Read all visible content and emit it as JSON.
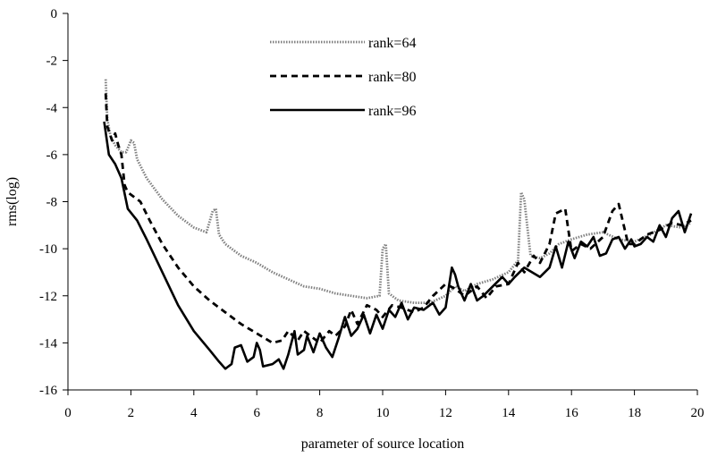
{
  "chart_data": {
    "type": "line",
    "title": "",
    "xlabel": "parameter of source location",
    "ylabel": "rms(log)",
    "xlim": [
      0,
      20
    ],
    "ylim": [
      -16,
      0
    ],
    "x_ticks": [
      0,
      2,
      4,
      6,
      8,
      10,
      12,
      14,
      16,
      18,
      20
    ],
    "y_ticks": [
      0,
      -2,
      -4,
      -6,
      -8,
      -10,
      -12,
      -14,
      -16
    ],
    "grid": false,
    "legend_position": "top-center",
    "series": [
      {
        "name": "rank=64",
        "line_style": "dotted",
        "color": "#808080",
        "points": [
          [
            1.2,
            -2.8
          ],
          [
            1.25,
            -4.5
          ],
          [
            1.35,
            -5.2
          ],
          [
            1.5,
            -5.6
          ],
          [
            1.7,
            -5.9
          ],
          [
            1.85,
            -5.9
          ],
          [
            2.0,
            -5.4
          ],
          [
            2.1,
            -5.5
          ],
          [
            2.2,
            -6.2
          ],
          [
            2.5,
            -7.0
          ],
          [
            3.0,
            -7.9
          ],
          [
            3.5,
            -8.6
          ],
          [
            4.0,
            -9.1
          ],
          [
            4.4,
            -9.3
          ],
          [
            4.6,
            -8.4
          ],
          [
            4.7,
            -8.3
          ],
          [
            4.8,
            -9.4
          ],
          [
            5.0,
            -9.8
          ],
          [
            5.5,
            -10.3
          ],
          [
            6.0,
            -10.6
          ],
          [
            6.5,
            -11.0
          ],
          [
            7.0,
            -11.3
          ],
          [
            7.5,
            -11.6
          ],
          [
            8.0,
            -11.7
          ],
          [
            8.5,
            -11.9
          ],
          [
            9.0,
            -12.0
          ],
          [
            9.5,
            -12.1
          ],
          [
            9.9,
            -12.0
          ],
          [
            10.0,
            -10.0
          ],
          [
            10.1,
            -9.8
          ],
          [
            10.2,
            -11.9
          ],
          [
            10.5,
            -12.2
          ],
          [
            11.0,
            -12.3
          ],
          [
            11.5,
            -12.3
          ],
          [
            12.0,
            -12.0
          ],
          [
            12.3,
            -11.6
          ],
          [
            12.6,
            -11.8
          ],
          [
            13.0,
            -11.5
          ],
          [
            13.5,
            -11.3
          ],
          [
            14.0,
            -11.0
          ],
          [
            14.3,
            -10.5
          ],
          [
            14.4,
            -7.6
          ],
          [
            14.5,
            -7.9
          ],
          [
            14.7,
            -10.3
          ],
          [
            15.0,
            -10.4
          ],
          [
            15.3,
            -10.2
          ],
          [
            15.6,
            -9.8
          ],
          [
            16.0,
            -9.6
          ],
          [
            16.5,
            -9.4
          ],
          [
            17.0,
            -9.3
          ],
          [
            17.5,
            -9.6
          ],
          [
            18.0,
            -9.7
          ],
          [
            18.5,
            -9.4
          ],
          [
            19.0,
            -9.0
          ],
          [
            19.5,
            -9.1
          ],
          [
            19.8,
            -8.9
          ]
        ]
      },
      {
        "name": "rank=80",
        "line_style": "dashed",
        "color": "#000000",
        "points": [
          [
            1.2,
            -3.4
          ],
          [
            1.25,
            -4.8
          ],
          [
            1.4,
            -5.4
          ],
          [
            1.5,
            -5.1
          ],
          [
            1.6,
            -5.6
          ],
          [
            1.7,
            -6.0
          ],
          [
            1.8,
            -7.3
          ],
          [
            1.9,
            -7.6
          ],
          [
            2.1,
            -7.8
          ],
          [
            2.3,
            -8.0
          ],
          [
            2.6,
            -8.8
          ],
          [
            3.0,
            -9.8
          ],
          [
            3.5,
            -10.8
          ],
          [
            4.0,
            -11.6
          ],
          [
            4.5,
            -12.2
          ],
          [
            5.0,
            -12.7
          ],
          [
            5.5,
            -13.2
          ],
          [
            6.0,
            -13.6
          ],
          [
            6.5,
            -14.0
          ],
          [
            6.8,
            -13.9
          ],
          [
            7.0,
            -13.5
          ],
          [
            7.3,
            -13.9
          ],
          [
            7.5,
            -13.5
          ],
          [
            8.0,
            -14.0
          ],
          [
            8.3,
            -13.5
          ],
          [
            8.5,
            -13.7
          ],
          [
            8.8,
            -13.3
          ],
          [
            9.0,
            -12.6
          ],
          [
            9.2,
            -13.2
          ],
          [
            9.5,
            -12.4
          ],
          [
            9.8,
            -12.6
          ],
          [
            10.0,
            -12.9
          ],
          [
            10.3,
            -12.4
          ],
          [
            10.6,
            -12.5
          ],
          [
            11.0,
            -12.7
          ],
          [
            11.3,
            -12.5
          ],
          [
            11.6,
            -12.0
          ],
          [
            12.0,
            -11.5
          ],
          [
            12.3,
            -11.7
          ],
          [
            12.6,
            -12.0
          ],
          [
            13.0,
            -11.6
          ],
          [
            13.3,
            -12.1
          ],
          [
            13.6,
            -11.6
          ],
          [
            14.0,
            -11.5
          ],
          [
            14.3,
            -10.6
          ],
          [
            14.5,
            -11.0
          ],
          [
            14.8,
            -10.3
          ],
          [
            15.0,
            -10.6
          ],
          [
            15.3,
            -9.8
          ],
          [
            15.5,
            -8.5
          ],
          [
            15.8,
            -8.3
          ],
          [
            16.0,
            -10.1
          ],
          [
            16.3,
            -9.8
          ],
          [
            16.6,
            -10.0
          ],
          [
            17.0,
            -9.5
          ],
          [
            17.3,
            -8.4
          ],
          [
            17.5,
            -8.1
          ],
          [
            17.8,
            -9.8
          ],
          [
            18.0,
            -9.8
          ],
          [
            18.4,
            -9.4
          ],
          [
            18.8,
            -9.2
          ],
          [
            19.2,
            -8.9
          ],
          [
            19.5,
            -9.0
          ],
          [
            19.8,
            -8.8
          ]
        ]
      },
      {
        "name": "rank=96",
        "line_style": "solid",
        "color": "#000000",
        "points": [
          [
            1.15,
            -4.6
          ],
          [
            1.3,
            -6.0
          ],
          [
            1.5,
            -6.4
          ],
          [
            1.7,
            -7.0
          ],
          [
            1.9,
            -8.3
          ],
          [
            2.2,
            -8.8
          ],
          [
            2.5,
            -9.6
          ],
          [
            3.0,
            -11.0
          ],
          [
            3.5,
            -12.4
          ],
          [
            4.0,
            -13.5
          ],
          [
            4.5,
            -14.3
          ],
          [
            4.8,
            -14.8
          ],
          [
            5.0,
            -15.1
          ],
          [
            5.2,
            -14.9
          ],
          [
            5.3,
            -14.2
          ],
          [
            5.5,
            -14.1
          ],
          [
            5.7,
            -14.8
          ],
          [
            5.9,
            -14.6
          ],
          [
            6.0,
            -14.0
          ],
          [
            6.1,
            -14.3
          ],
          [
            6.2,
            -15.0
          ],
          [
            6.5,
            -14.9
          ],
          [
            6.7,
            -14.7
          ],
          [
            6.85,
            -15.1
          ],
          [
            7.0,
            -14.5
          ],
          [
            7.2,
            -13.5
          ],
          [
            7.3,
            -14.5
          ],
          [
            7.5,
            -14.3
          ],
          [
            7.6,
            -13.7
          ],
          [
            7.8,
            -14.4
          ],
          [
            8.0,
            -13.6
          ],
          [
            8.2,
            -14.2
          ],
          [
            8.4,
            -14.6
          ],
          [
            8.6,
            -13.8
          ],
          [
            8.8,
            -12.9
          ],
          [
            9.0,
            -13.7
          ],
          [
            9.2,
            -13.4
          ],
          [
            9.4,
            -12.8
          ],
          [
            9.6,
            -13.6
          ],
          [
            9.8,
            -12.8
          ],
          [
            10.0,
            -13.4
          ],
          [
            10.2,
            -12.6
          ],
          [
            10.4,
            -12.9
          ],
          [
            10.6,
            -12.3
          ],
          [
            10.8,
            -13.0
          ],
          [
            11.0,
            -12.5
          ],
          [
            11.3,
            -12.6
          ],
          [
            11.6,
            -12.3
          ],
          [
            11.8,
            -12.8
          ],
          [
            12.0,
            -12.5
          ],
          [
            12.2,
            -10.8
          ],
          [
            12.3,
            -11.1
          ],
          [
            12.4,
            -11.6
          ],
          [
            12.6,
            -12.2
          ],
          [
            12.8,
            -11.5
          ],
          [
            13.0,
            -12.2
          ],
          [
            13.2,
            -12.0
          ],
          [
            13.5,
            -11.6
          ],
          [
            13.8,
            -11.2
          ],
          [
            14.0,
            -11.5
          ],
          [
            14.2,
            -11.2
          ],
          [
            14.5,
            -10.8
          ],
          [
            15.0,
            -11.2
          ],
          [
            15.3,
            -10.8
          ],
          [
            15.5,
            -9.9
          ],
          [
            15.7,
            -10.8
          ],
          [
            15.9,
            -9.7
          ],
          [
            16.1,
            -10.4
          ],
          [
            16.3,
            -9.7
          ],
          [
            16.5,
            -9.9
          ],
          [
            16.7,
            -9.5
          ],
          [
            16.9,
            -10.3
          ],
          [
            17.1,
            -10.2
          ],
          [
            17.3,
            -9.6
          ],
          [
            17.5,
            -9.5
          ],
          [
            17.7,
            -10.0
          ],
          [
            17.9,
            -9.6
          ],
          [
            18.0,
            -9.9
          ],
          [
            18.2,
            -9.8
          ],
          [
            18.4,
            -9.5
          ],
          [
            18.6,
            -9.7
          ],
          [
            18.8,
            -9.0
          ],
          [
            19.0,
            -9.5
          ],
          [
            19.2,
            -8.7
          ],
          [
            19.4,
            -8.4
          ],
          [
            19.6,
            -9.3
          ],
          [
            19.8,
            -8.5
          ]
        ]
      }
    ]
  }
}
